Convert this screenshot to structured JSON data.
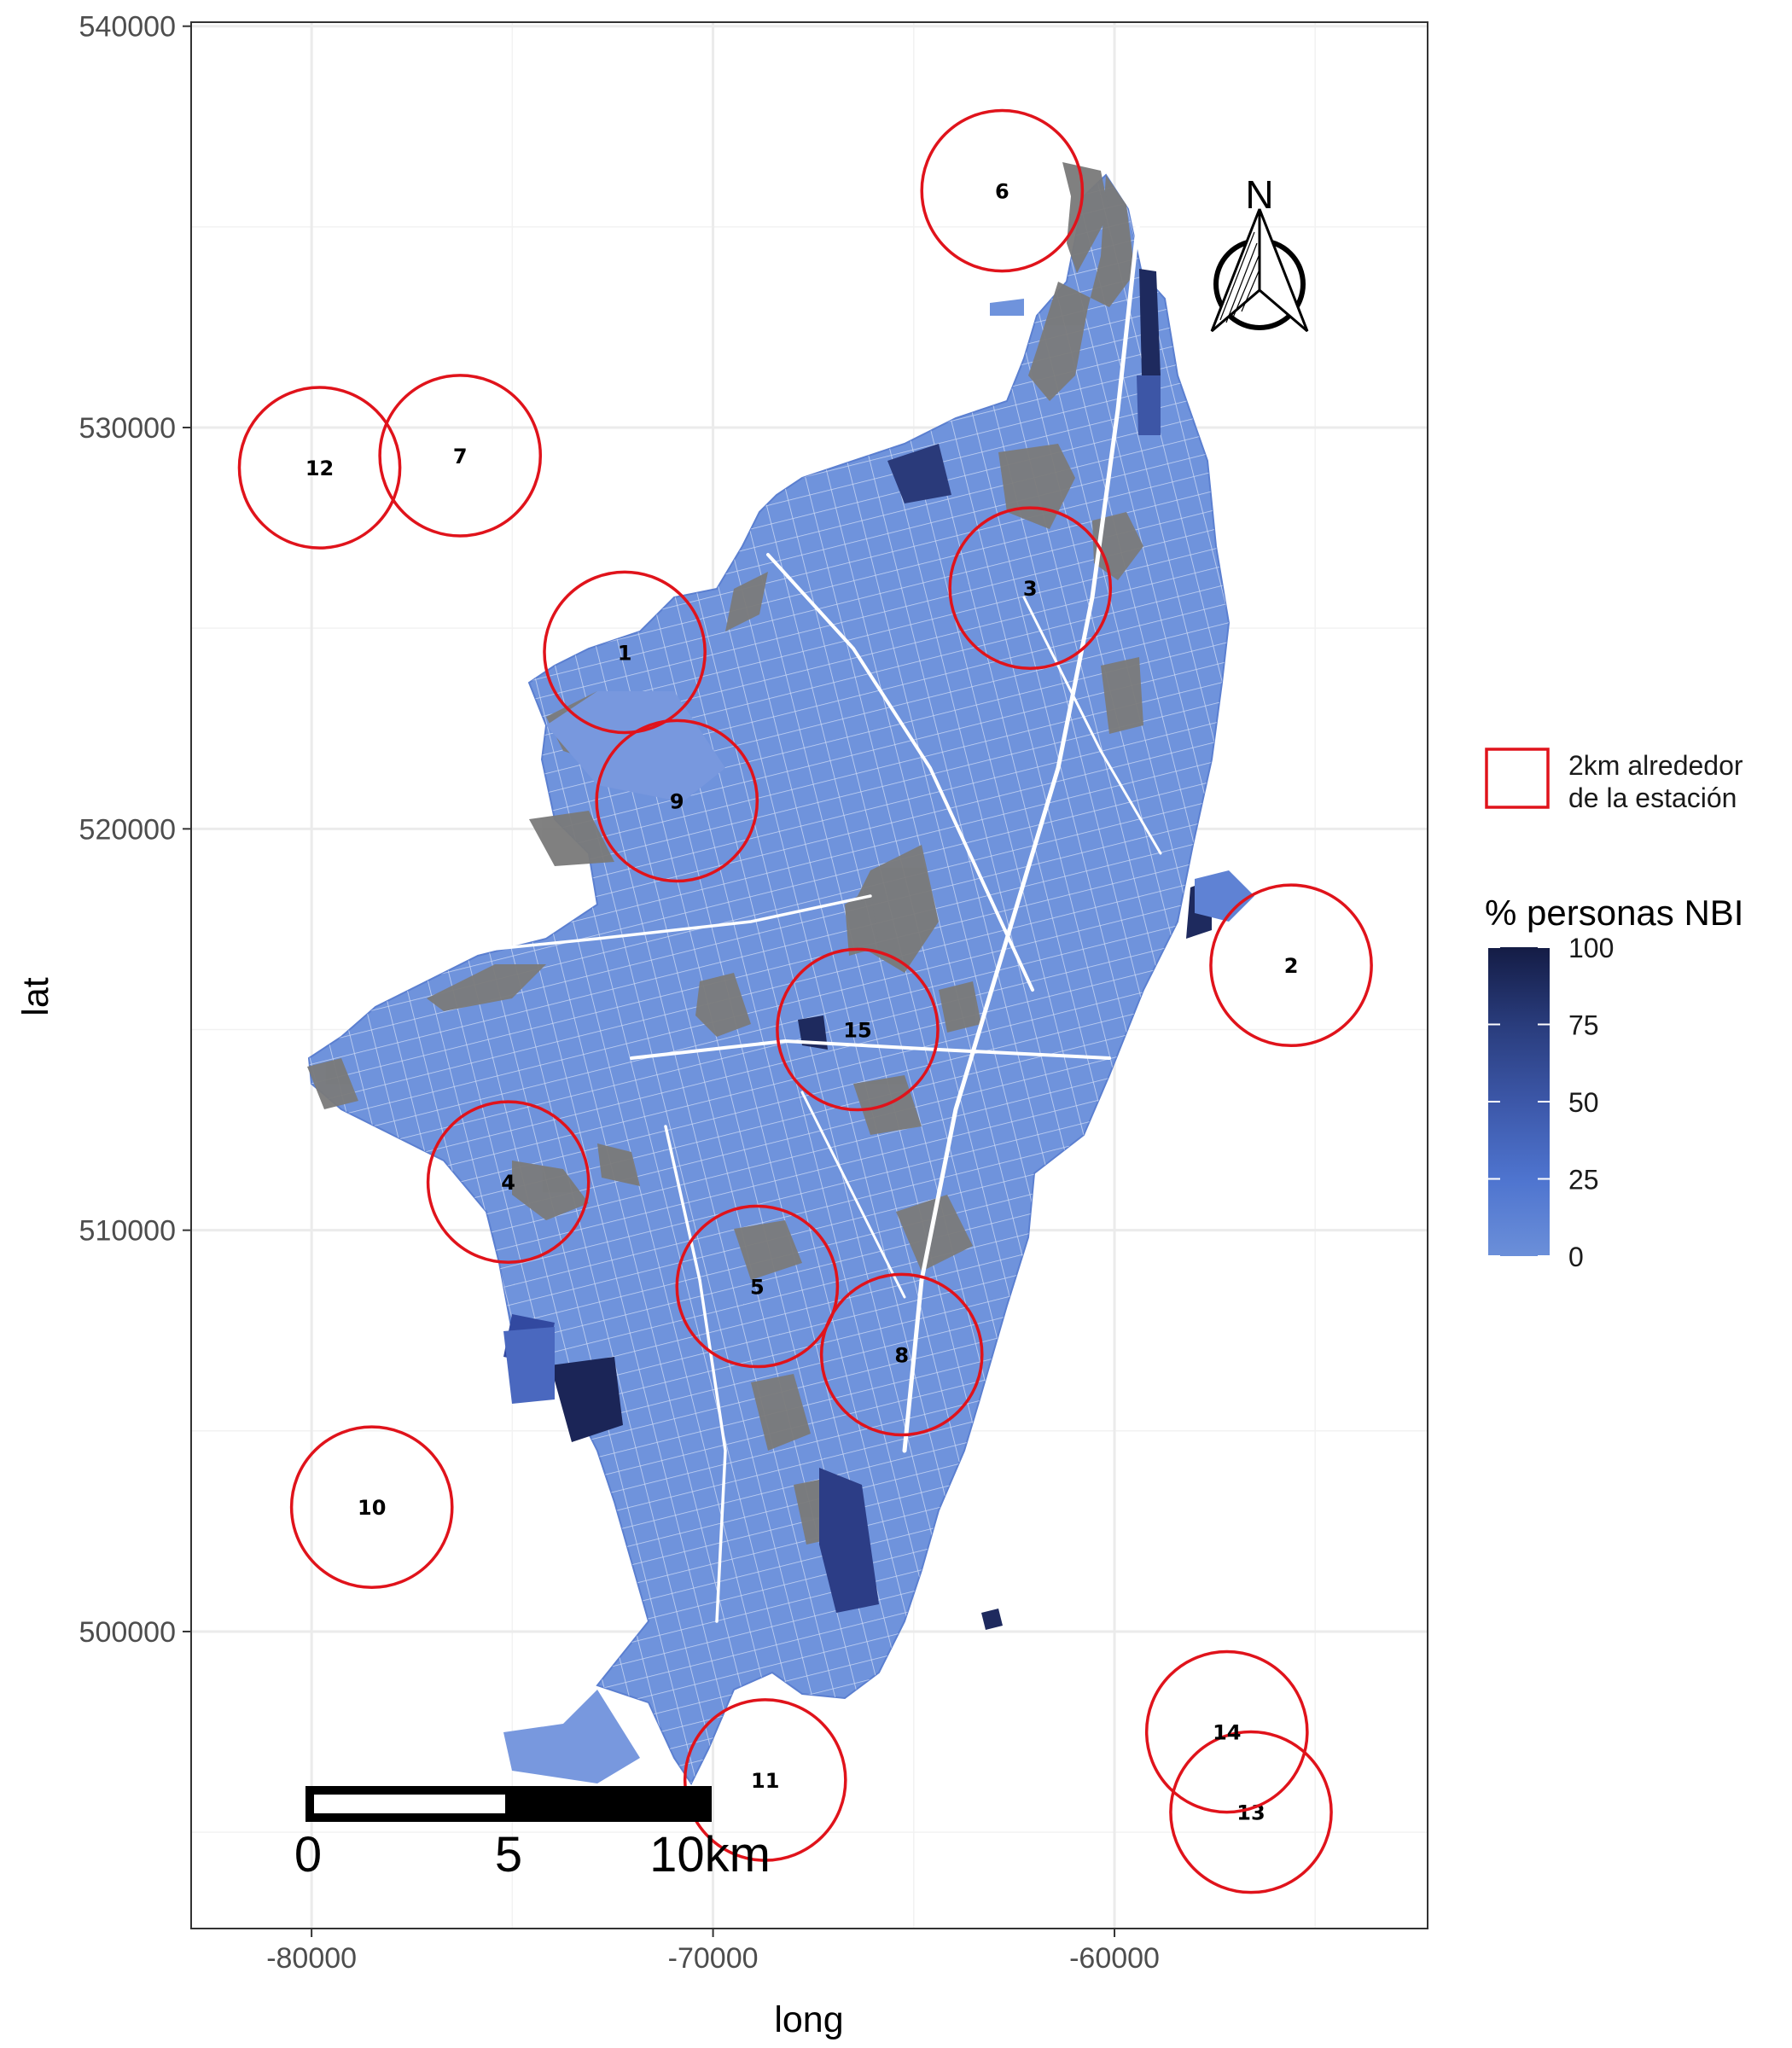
{
  "chart_data": {
    "type": "map",
    "xlabel": "long",
    "ylabel": "lat",
    "xlim": [
      -83000,
      -52200
    ],
    "ylim": [
      492600,
      540100
    ],
    "x_ticks": [
      {
        "value": -80000,
        "label": "-80000"
      },
      {
        "value": -70000,
        "label": "-70000"
      },
      {
        "value": -60000,
        "label": "-60000"
      }
    ],
    "y_ticks": [
      {
        "value": 500000,
        "label": "500000"
      },
      {
        "value": 510000,
        "label": "510000"
      },
      {
        "value": 520000,
        "label": "520000"
      },
      {
        "value": 530000,
        "label": "530000"
      },
      {
        "value": 540000,
        "label": "540000"
      }
    ],
    "grid": true,
    "buffer_radius_m": 2000,
    "stations": [
      {
        "id": "1",
        "x": -72200,
        "y": 524400
      },
      {
        "id": "2",
        "x": -55600,
        "y": 516600
      },
      {
        "id": "3",
        "x": -62100,
        "y": 526000
      },
      {
        "id": "4",
        "x": -75100,
        "y": 511200
      },
      {
        "id": "5",
        "x": -68900,
        "y": 508600
      },
      {
        "id": "6",
        "x": -62800,
        "y": 535900
      },
      {
        "id": "7",
        "x": -76300,
        "y": 529300
      },
      {
        "id": "8",
        "x": -65300,
        "y": 506900
      },
      {
        "id": "9",
        "x": -70900,
        "y": 520700
      },
      {
        "id": "10",
        "x": -78500,
        "y": 503100
      },
      {
        "id": "11",
        "x": -68700,
        "y": 496300
      },
      {
        "id": "12",
        "x": -79800,
        "y": 529000
      },
      {
        "id": "13",
        "x": -56600,
        "y": 495500
      },
      {
        "id": "14",
        "x": -57200,
        "y": 497500
      },
      {
        "id": "15",
        "x": -66400,
        "y": 515000
      }
    ],
    "fill_variable": "% personas NBI",
    "fill_range": [
      0,
      100
    ],
    "missing_color": "#7f7f7f",
    "colors": {
      "low": "#6b8fd9",
      "mid": "#4e74cf",
      "high": "#141c45",
      "buffer": "#e0131b"
    },
    "scale_bar": {
      "labels": [
        "0",
        "5",
        "10km"
      ]
    },
    "north_arrow": {
      "label": "N"
    }
  },
  "legend": {
    "buffer_label_line1": "2km alrededor",
    "buffer_label_line2": "de la estación",
    "fill_title": "% personas NBI",
    "fill_breaks": [
      "100",
      "75",
      "50",
      "25",
      "0"
    ]
  }
}
